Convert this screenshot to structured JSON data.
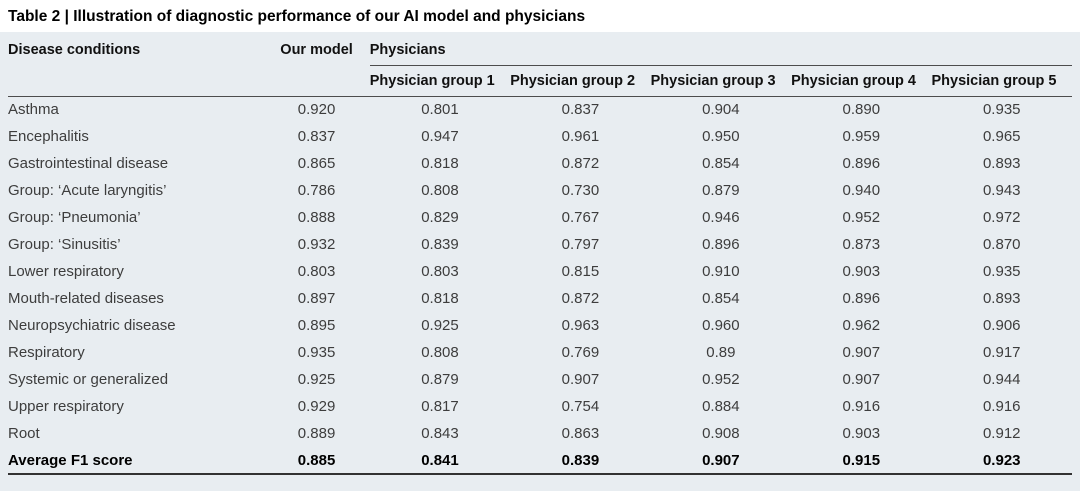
{
  "title": "Table 2 | Illustration of diagnostic performance of our AI model and physicians",
  "table": {
    "header": {
      "disease": "Disease conditions",
      "our_model": "Our model",
      "physicians": "Physicians",
      "groups": [
        "Physician group 1",
        "Physician group 2",
        "Physician group 3",
        "Physician group 4",
        "Physician group 5"
      ]
    },
    "rows": [
      {
        "emphasis": false,
        "cells": [
          "Asthma",
          "0.920",
          "0.801",
          "0.837",
          "0.904",
          "0.890",
          "0.935"
        ]
      },
      {
        "emphasis": false,
        "cells": [
          "Encephalitis",
          "0.837",
          "0.947",
          "0.961",
          "0.950",
          "0.959",
          "0.965"
        ]
      },
      {
        "emphasis": false,
        "cells": [
          "Gastrointestinal disease",
          "0.865",
          "0.818",
          "0.872",
          "0.854",
          "0.896",
          "0.893"
        ]
      },
      {
        "emphasis": false,
        "cells": [
          "Group: ‘Acute laryngitis’",
          "0.786",
          "0.808",
          "0.730",
          "0.879",
          "0.940",
          "0.943"
        ]
      },
      {
        "emphasis": false,
        "cells": [
          "Group: ‘Pneumonia’",
          "0.888",
          "0.829",
          "0.767",
          "0.946",
          "0.952",
          "0.972"
        ]
      },
      {
        "emphasis": false,
        "cells": [
          "Group: ‘Sinusitis’",
          "0.932",
          "0.839",
          "0.797",
          "0.896",
          "0.873",
          "0.870"
        ]
      },
      {
        "emphasis": false,
        "cells": [
          "Lower respiratory",
          "0.803",
          "0.803",
          "0.815",
          "0.910",
          "0.903",
          "0.935"
        ]
      },
      {
        "emphasis": false,
        "cells": [
          "Mouth-related diseases",
          "0.897",
          "0.818",
          "0.872",
          "0.854",
          "0.896",
          "0.893"
        ]
      },
      {
        "emphasis": false,
        "cells": [
          "Neuropsychiatric disease",
          "0.895",
          "0.925",
          "0.963",
          "0.960",
          "0.962",
          "0.906"
        ]
      },
      {
        "emphasis": false,
        "cells": [
          "Respiratory",
          "0.935",
          "0.808",
          "0.769",
          "0.89",
          "0.907",
          "0.917"
        ]
      },
      {
        "emphasis": false,
        "cells": [
          "Systemic or generalized",
          "0.925",
          "0.879",
          "0.907",
          "0.952",
          "0.907",
          "0.944"
        ]
      },
      {
        "emphasis": false,
        "cells": [
          "Upper respiratory",
          "0.929",
          "0.817",
          "0.754",
          "0.884",
          "0.916",
          "0.916"
        ]
      },
      {
        "emphasis": false,
        "cells": [
          "Root",
          "0.889",
          "0.843",
          "0.863",
          "0.908",
          "0.903",
          "0.912"
        ]
      },
      {
        "emphasis": true,
        "cells": [
          "Average F1 score",
          "0.885",
          "0.841",
          "0.839",
          "0.907",
          "0.915",
          "0.923"
        ]
      }
    ]
  },
  "colors": {
    "table_background": "#e8edf1",
    "title_background": "#ffffff",
    "rule_thin": "#4d4d4d",
    "rule_thick": "#323232",
    "text_primary": "#000000",
    "text_data": "#3d3d3d"
  }
}
